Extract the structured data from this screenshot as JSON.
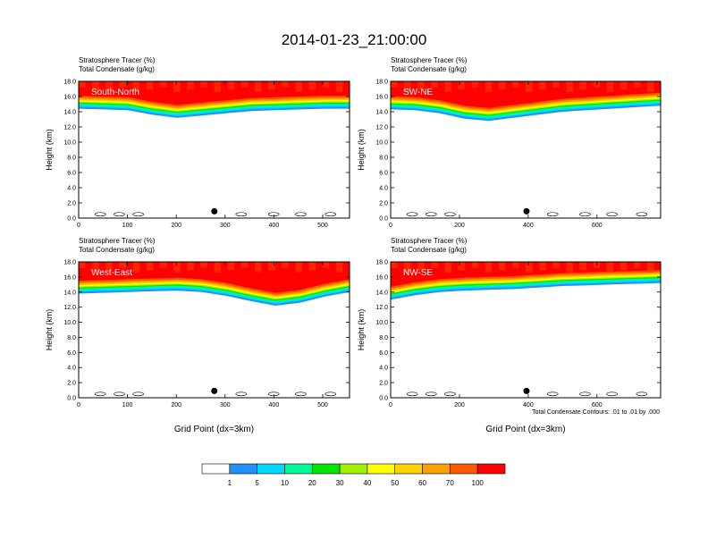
{
  "figure": {
    "title": "2014-01-23_21:00:00",
    "condensate_note": "Total Condensate Contours: .01 to .01 by .000"
  },
  "chart_data": [
    {
      "type": "heatmap",
      "panel_label": "South-North",
      "title_line1": "Stratosphere Tracer   (%)",
      "title_line2": "Total Condensate   (g/kg)",
      "ylabel": "Height (km)",
      "xlabel": "",
      "xlim": [
        0,
        555
      ],
      "ylim": [
        0,
        18
      ],
      "xticks": [
        0,
        100,
        200,
        300,
        400,
        500
      ],
      "yticks": [
        0.0,
        2.0,
        4.0,
        6.0,
        8.0,
        10.0,
        12.0,
        14.0,
        16.0,
        18.0
      ],
      "marker_x": 278,
      "tracer_base_km": [
        14.4,
        14.3,
        14.2,
        13.6,
        13.2,
        13.5,
        13.8,
        14.1,
        14.2,
        14.3,
        14.4,
        14.4
      ]
    },
    {
      "type": "heatmap",
      "panel_label": "SW-NE",
      "title_line1": "Stratosphere Tracer   (%)",
      "title_line2": "Total Condensate   (g/kg)",
      "ylabel": "Height (km)",
      "xlabel": "",
      "xlim": [
        0,
        785
      ],
      "ylim": [
        0,
        18
      ],
      "xticks": [
        0,
        200,
        400,
        600
      ],
      "yticks": [
        0.0,
        2.0,
        4.0,
        6.0,
        8.0,
        10.0,
        12.0,
        14.0,
        16.0,
        18.0
      ],
      "marker_x": 395,
      "tracer_base_km": [
        14.3,
        14.2,
        13.8,
        13.1,
        12.8,
        13.2,
        13.6,
        14.0,
        14.2,
        14.4,
        14.6,
        14.8
      ]
    },
    {
      "type": "heatmap",
      "panel_label": "West-East",
      "title_line1": "Stratosphere Tracer   (%)",
      "title_line2": "Total Condensate   (g/kg)",
      "ylabel": "Height (km)",
      "xlabel": "Grid Point (dx=3km)",
      "xlim": [
        0,
        555
      ],
      "ylim": [
        0,
        18
      ],
      "xticks": [
        0,
        100,
        200,
        300,
        400,
        500
      ],
      "yticks": [
        0.0,
        2.0,
        4.0,
        6.0,
        8.0,
        10.0,
        12.0,
        14.0,
        16.0,
        18.0
      ],
      "marker_x": 278,
      "tracer_base_km": [
        13.8,
        13.9,
        14.0,
        14.1,
        14.2,
        14.0,
        13.5,
        12.8,
        12.2,
        12.6,
        13.4,
        14.0
      ]
    },
    {
      "type": "heatmap",
      "panel_label": "NW-SE",
      "title_line1": "Stratosphere Tracer   (%)",
      "title_line2": "Total Condensate   (g/kg)",
      "ylabel": "Height (km)",
      "xlabel": "Grid Point (dx=3km)",
      "xlim": [
        0,
        785
      ],
      "ylim": [
        0,
        18
      ],
      "xticks": [
        0,
        200,
        400,
        600
      ],
      "yticks": [
        0.0,
        2.0,
        4.0,
        6.0,
        8.0,
        10.0,
        12.0,
        14.0,
        16.0,
        18.0
      ],
      "marker_x": 395,
      "tracer_base_km": [
        13.0,
        13.6,
        14.0,
        14.2,
        14.3,
        14.4,
        14.6,
        14.8,
        14.9,
        15.0,
        15.1,
        15.2
      ]
    }
  ],
  "colorbar": {
    "labels": [
      "1",
      "5",
      "10",
      "20",
      "30",
      "40",
      "50",
      "60",
      "70",
      "100"
    ],
    "colors": [
      "#ffffff",
      "#1e90ff",
      "#00d8ff",
      "#00fa9a",
      "#00e600",
      "#a0f000",
      "#ffff00",
      "#ffd200",
      "#ffa000",
      "#ff5a00",
      "#ff0000"
    ]
  }
}
